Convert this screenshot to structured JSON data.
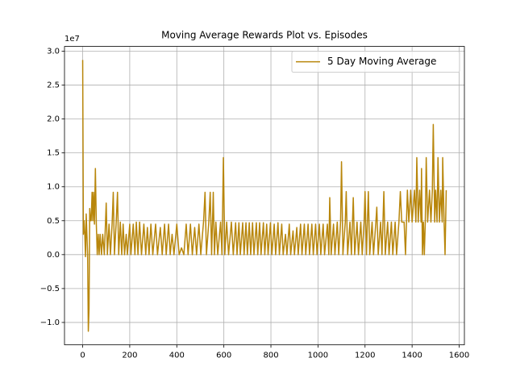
{
  "chart_data": {
    "type": "line",
    "title": "Moving Average Rewards Plot vs. Episodes",
    "y_offset_label": "1e7",
    "x": [
      0,
      3,
      6,
      9,
      12,
      15,
      18,
      21,
      24,
      27,
      30,
      33,
      36,
      40,
      43,
      46,
      50,
      54,
      58,
      62,
      66,
      70,
      74,
      80,
      85,
      92,
      100,
      105,
      112,
      118,
      125,
      130,
      135,
      142,
      148,
      153,
      160,
      166,
      172,
      178,
      185,
      190,
      200,
      205,
      215,
      222,
      228,
      235,
      242,
      250,
      260,
      268,
      275,
      282,
      290,
      298,
      310,
      318,
      330,
      338,
      348,
      355,
      365,
      372,
      380,
      388,
      400,
      410,
      420,
      430,
      440,
      448,
      458,
      466,
      476,
      484,
      494,
      502,
      514,
      520,
      526,
      536,
      542,
      548,
      555,
      560,
      566,
      574,
      586,
      592,
      598,
      604,
      612,
      620,
      632,
      640,
      650,
      656,
      664,
      670,
      680,
      686,
      694,
      700,
      708,
      714,
      722,
      728,
      738,
      744,
      752,
      758,
      768,
      774,
      782,
      788,
      798,
      804,
      814,
      820,
      830,
      836,
      846,
      852,
      862,
      868,
      878,
      884,
      894,
      900,
      910,
      916,
      926,
      932,
      942,
      948,
      958,
      964,
      974,
      980,
      990,
      996,
      1006,
      1012,
      1022,
      1028,
      1040,
      1046,
      1050,
      1056,
      1066,
      1072,
      1082,
      1088,
      1096,
      1100,
      1106,
      1116,
      1120,
      1126,
      1136,
      1142,
      1150,
      1156,
      1166,
      1172,
      1182,
      1188,
      1196,
      1200,
      1206,
      1214,
      1220,
      1230,
      1236,
      1246,
      1250,
      1256,
      1266,
      1272,
      1280,
      1286,
      1296,
      1302,
      1312,
      1318,
      1328,
      1334,
      1344,
      1350,
      1356,
      1366,
      1372,
      1380,
      1386,
      1394,
      1400,
      1410,
      1416,
      1420,
      1426,
      1432,
      1438,
      1440,
      1444,
      1448,
      1452,
      1456,
      1460,
      1466,
      1474,
      1480,
      1486,
      1490,
      1496,
      1500,
      1506,
      1510,
      1516,
      1522,
      1528,
      1530,
      1536,
      1540,
      1545
    ],
    "series": [
      {
        "name": "5 Day Moving Average",
        "color": "#b8860b",
        "values": [
          2.87,
          0.3,
          0.5,
          0.3,
          -0.03,
          0.6,
          0.3,
          0.0,
          -1.13,
          -0.8,
          0.68,
          0.5,
          0.5,
          0.92,
          0.5,
          0.92,
          0.45,
          1.27,
          0.45,
          0.0,
          0.3,
          0.0,
          0.3,
          0.0,
          0.3,
          0.0,
          0.76,
          0.0,
          0.45,
          0.0,
          0.45,
          0.92,
          0.0,
          0.45,
          0.92,
          0.0,
          0.48,
          0.0,
          0.45,
          0.0,
          0.3,
          0.0,
          0.45,
          0.0,
          0.45,
          0.0,
          0.48,
          0.0,
          0.48,
          0.0,
          0.45,
          0.0,
          0.4,
          0.0,
          0.45,
          0.0,
          0.45,
          0.0,
          0.4,
          0.0,
          0.45,
          0.0,
          0.45,
          0.0,
          0.3,
          0.0,
          0.45,
          0.0,
          0.1,
          0.0,
          0.45,
          0.0,
          0.45,
          0.0,
          0.4,
          0.0,
          0.45,
          0.0,
          0.5,
          0.92,
          0.0,
          0.48,
          0.92,
          0.0,
          0.92,
          0.0,
          0.48,
          0.0,
          0.48,
          0.0,
          1.43,
          0.0,
          0.48,
          0.0,
          0.48,
          0.0,
          0.47,
          0.0,
          0.47,
          0.0,
          0.47,
          0.0,
          0.47,
          0.0,
          0.47,
          0.0,
          0.47,
          0.0,
          0.47,
          0.0,
          0.47,
          0.0,
          0.47,
          0.0,
          0.45,
          0.0,
          0.47,
          0.0,
          0.45,
          0.0,
          0.47,
          0.0,
          0.45,
          0.0,
          0.3,
          0.0,
          0.45,
          0.0,
          0.35,
          0.0,
          0.4,
          0.0,
          0.45,
          0.0,
          0.45,
          0.0,
          0.45,
          0.0,
          0.45,
          0.0,
          0.45,
          0.0,
          0.45,
          0.0,
          0.45,
          0.0,
          0.45,
          0.0,
          0.84,
          0.0,
          0.45,
          0.0,
          0.48,
          0.0,
          0.48,
          1.37,
          0.0,
          0.48,
          0.93,
          0.0,
          0.48,
          0.0,
          0.84,
          0.0,
          0.48,
          0.0,
          0.48,
          0.0,
          0.48,
          0.93,
          0.0,
          0.93,
          0.0,
          0.48,
          0.0,
          0.48,
          0.7,
          0.0,
          0.48,
          0.0,
          0.93,
          0.0,
          0.48,
          0.0,
          0.48,
          0.0,
          0.48,
          0.0,
          0.48,
          0.93,
          0.48,
          0.48,
          0.0,
          0.95,
          0.48,
          0.95,
          0.48,
          0.95,
          0.48,
          1.43,
          0.48,
          0.95,
          0.48,
          1.27,
          0.0,
          0.48,
          0.0,
          0.48,
          1.43,
          0.48,
          0.95,
          0.48,
          0.95,
          1.92,
          0.48,
          0.95,
          0.48,
          1.43,
          0.48,
          0.95,
          0.48,
          1.43,
          0.48,
          0.0,
          0.95
        ]
      }
    ],
    "xlim": [
      -77.25,
      1622.25
    ],
    "xticks": [
      0,
      200,
      400,
      600,
      800,
      1000,
      1200,
      1400,
      1600
    ],
    "ylim": [
      -1.33,
      3.07
    ],
    "yticks": [
      {
        "value": -1.0,
        "label": "−1.0"
      },
      {
        "value": -0.5,
        "label": "−0.5"
      },
      {
        "value": 0,
        "label": "0.0"
      },
      {
        "value": 0.5,
        "label": "0.5"
      },
      {
        "value": 1.0,
        "label": "1.0"
      },
      {
        "value": 1.5,
        "label": "1.5"
      },
      {
        "value": 2.0,
        "label": "2.0"
      },
      {
        "value": 2.5,
        "label": "2.5"
      },
      {
        "value": 3.0,
        "label": "3.0"
      }
    ],
    "grid": true,
    "legend": "upper right"
  }
}
